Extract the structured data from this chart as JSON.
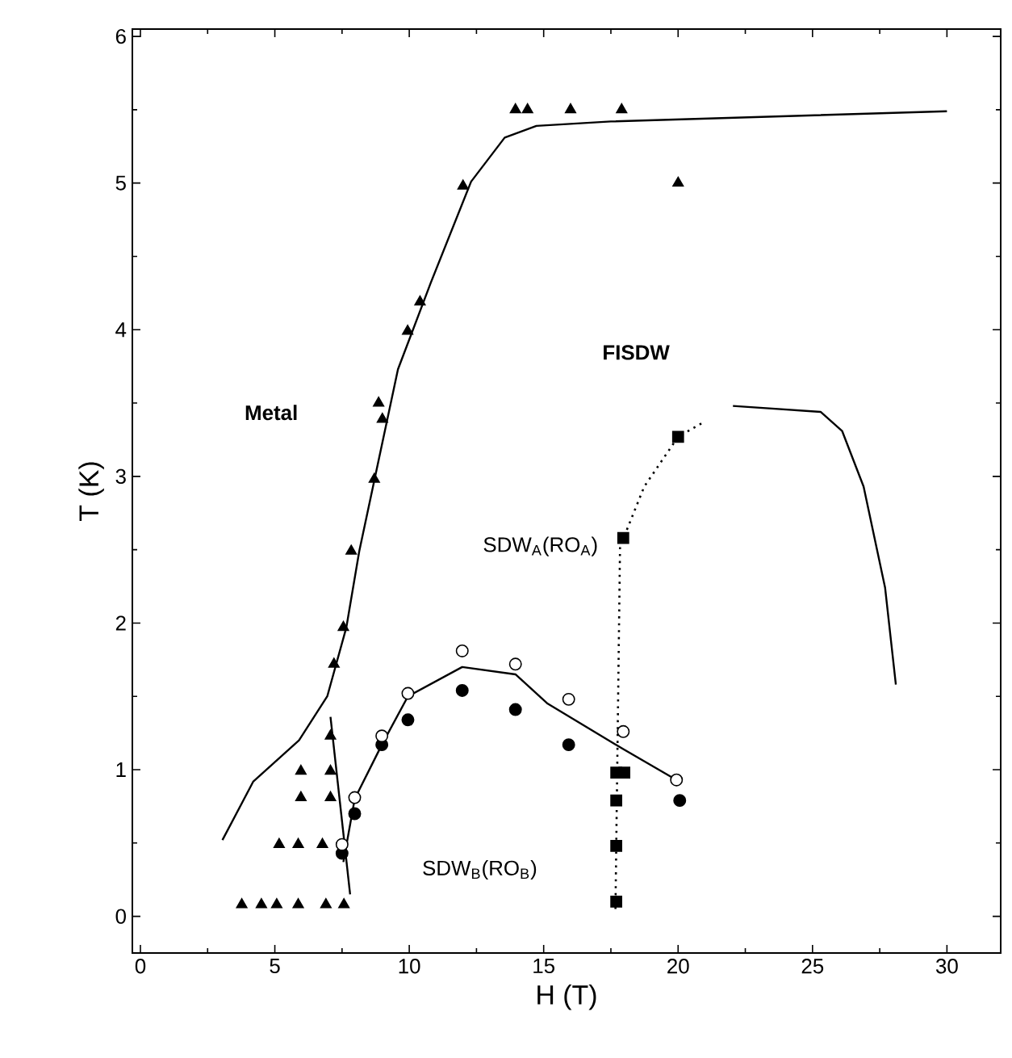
{
  "chart_data": {
    "type": "scatter",
    "xlabel": "H (T)",
    "ylabel": "T (K)",
    "xlim": [
      -0.3,
      32
    ],
    "ylim": [
      -0.25,
      6.05
    ],
    "xticks": [
      0,
      5,
      10,
      15,
      20,
      25,
      30
    ],
    "yticks": [
      0,
      1,
      2,
      3,
      4,
      5,
      6
    ],
    "annotations": [
      "Metal",
      "FISDW",
      "SDW$_{A}$(RO$_{A}$)",
      "SDW$_{B}$(RO$_{B}$)"
    ],
    "series": [
      {
        "type": "line",
        "color": "#000000",
        "marker": "none",
        "line_style": "solid",
        "x": [
          3.05,
          4.2,
          5.9,
          6.95,
          7.66,
          8.14,
          8.86,
          9.58,
          10.8,
          12.3,
          13.55,
          14.73,
          17.5,
          30
        ],
        "values": [
          0.52,
          0.92,
          1.2,
          1.5,
          1.97,
          2.49,
          3.11,
          3.73,
          4.32,
          5.01,
          5.31,
          5.39,
          5.42,
          5.49
        ]
      },
      {
        "type": "line",
        "color": "#000000",
        "marker": "none",
        "line_style": "solid",
        "x": [
          7.07,
          7.8
        ],
        "values": [
          1.36,
          0.15
        ]
      },
      {
        "type": "line",
        "color": "#000000",
        "marker": "none",
        "line_style": "solid",
        "x": [
          7.55,
          7.97,
          8.98,
          9.95,
          11.97,
          13.95,
          15.15,
          17.96,
          19.94
        ],
        "values": [
          0.37,
          0.8,
          1.17,
          1.5,
          1.7,
          1.65,
          1.45,
          1.14,
          0.93
        ]
      },
      {
        "type": "line",
        "color": "#000000",
        "marker": "none",
        "line_style": "dotted",
        "x": [
          17.67,
          17.84,
          18.74,
          20.0,
          20.96
        ],
        "values": [
          0.05,
          2.52,
          2.93,
          3.27,
          3.37
        ]
      },
      {
        "type": "line",
        "color": "#000000",
        "marker": "none",
        "line_style": "solid",
        "x": [
          22.04,
          25.3,
          26.1,
          26.9,
          27.7,
          28.1
        ],
        "values": [
          3.48,
          3.44,
          3.31,
          2.93,
          2.24,
          1.58
        ]
      },
      {
        "color": "#000000",
        "marker": "triangle",
        "x": [
          3.77,
          4.5,
          5.07,
          5.87,
          6.9,
          7.57,
          5.16,
          5.87,
          6.77,
          5.97,
          7.07,
          5.97,
          7.07,
          7.07,
          7.55,
          7.2,
          7.84,
          8.7,
          9.0,
          8.86,
          9.94,
          10.4,
          12.0,
          13.95,
          14.4,
          16.0,
          17.9,
          20.0
        ],
        "values": [
          0.08,
          0.08,
          0.08,
          0.08,
          0.08,
          0.08,
          0.49,
          0.49,
          0.49,
          0.81,
          0.81,
          0.99,
          0.99,
          1.23,
          1.97,
          1.72,
          2.49,
          2.98,
          3.39,
          3.5,
          3.99,
          4.19,
          4.98,
          5.5,
          5.5,
          5.5,
          5.5,
          5.0
        ]
      },
      {
        "color": "#000000",
        "marker": "circle",
        "x": [
          7.5,
          7.97,
          8.98,
          9.95,
          11.97,
          13.95,
          15.93,
          20.06
        ],
        "values": [
          0.43,
          0.7,
          1.17,
          1.34,
          1.54,
          1.41,
          1.17,
          0.79
        ]
      },
      {
        "color": "#ffffff",
        "marker": "circle",
        "x": [
          7.5,
          7.97,
          8.98,
          9.95,
          11.97,
          13.95,
          15.93,
          17.96,
          19.94
        ],
        "values": [
          0.49,
          0.81,
          1.23,
          1.52,
          1.81,
          1.72,
          1.48,
          1.26,
          0.93
        ]
      },
      {
        "color": "#000000",
        "marker": "square",
        "x": [
          17.7,
          17.7,
          17.7,
          17.7,
          18.0,
          17.96,
          20.0
        ],
        "values": [
          0.1,
          0.48,
          0.79,
          0.98,
          0.98,
          2.58,
          3.27
        ]
      }
    ]
  }
}
